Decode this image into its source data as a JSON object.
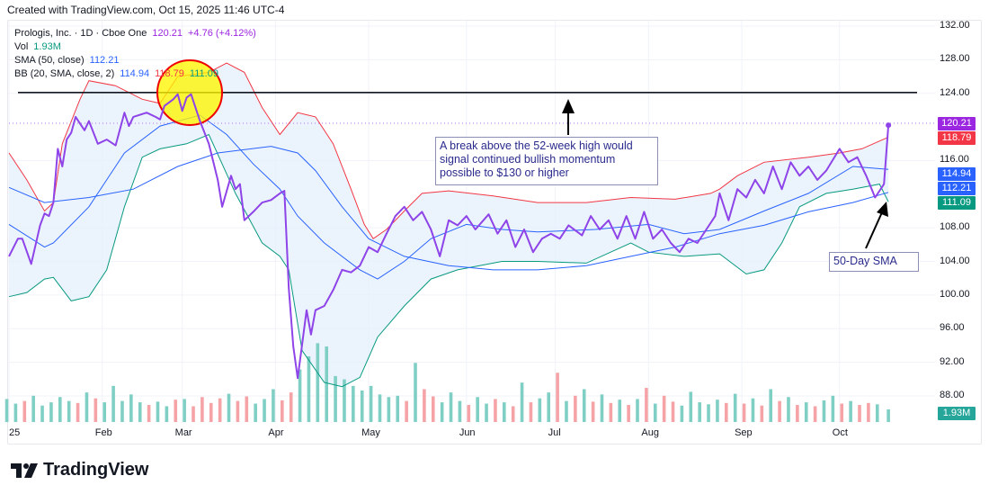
{
  "header": {
    "created": "Created with TradingView.com, Oct 15, 2025 11:46 UTC-4"
  },
  "legend": {
    "symbol": "Prologis, Inc. · 1D · Cboe One",
    "price": "120.21",
    "change": "+4.76 (+4.12%)",
    "vol_label": "Vol",
    "vol_value": "1.93M",
    "sma_label": "SMA (50, close)",
    "sma_value": "112.21",
    "bb_label": "BB (20, SMA, close, 2)",
    "bb_basis": "114.94",
    "bb_upper": "118.79",
    "bb_lower": "111.09"
  },
  "price_tags": {
    "last": "120.21",
    "bb_upper": "118.79",
    "bb_basis": "114.94",
    "sma": "112.21",
    "bb_lower": "111.09",
    "volume": "1.93M"
  },
  "annotations": {
    "breakout_note": "A break above the 52-week high would signal continued bullish momentum possible to $130 or higher",
    "sma_note": "50-Day SMA",
    "resistance_level": 124.1
  },
  "colors": {
    "price": "#8e44e8",
    "bb_upper": "#f23645",
    "bb_lower": "#089981",
    "bb_basis": "#2962ff",
    "sma": "#2962ff",
    "bb_fill": "#e3f0fb",
    "vol_up": "#7fcfc5",
    "vol_down": "#f5a3a6",
    "tag_last": "#9c27e0"
  },
  "brand": {
    "name": "TradingView"
  },
  "chart_data": {
    "type": "line",
    "title": "Prologis, Inc. · 1D",
    "xlabel": "",
    "ylabel": "",
    "ylim": [
      84,
      132
    ],
    "xlim": [
      0,
      198
    ],
    "x_unit": "trading day index (2025)",
    "y_ticks": [
      "132.00",
      "128.00",
      "124.00",
      "116.00",
      "108.00",
      "104.00",
      "100.00",
      "96.00",
      "92.00",
      "88.00"
    ],
    "y_tick_values": [
      132,
      128,
      124,
      116,
      108,
      104,
      100,
      96,
      92,
      88
    ],
    "x_ticks": [
      {
        "label": "25",
        "day": 0
      },
      {
        "label": "Feb",
        "day": 21
      },
      {
        "label": "Mar",
        "day": 39
      },
      {
        "label": "Apr",
        "day": 60
      },
      {
        "label": "May",
        "day": 81
      },
      {
        "label": "Jun",
        "day": 103
      },
      {
        "label": "Jul",
        "day": 123
      },
      {
        "label": "Aug",
        "day": 144
      },
      {
        "label": "Sep",
        "day": 165
      },
      {
        "label": "Oct",
        "day": 187
      }
    ],
    "grid": true,
    "series": [
      {
        "name": "Close",
        "key": "close",
        "points": [
          [
            0,
            104.6
          ],
          [
            2,
            106.7
          ],
          [
            3,
            106.7
          ],
          [
            5,
            103.7
          ],
          [
            7,
            108.3
          ],
          [
            8,
            109.7
          ],
          [
            9,
            109.4
          ],
          [
            10,
            111.0
          ],
          [
            11,
            117.4
          ],
          [
            12,
            115.3
          ],
          [
            13,
            118.5
          ],
          [
            14,
            119.3
          ],
          [
            15,
            121.2
          ],
          [
            17,
            119.6
          ],
          [
            18,
            120.7
          ],
          [
            20,
            118.0
          ],
          [
            22,
            118.5
          ],
          [
            24,
            117.8
          ],
          [
            26,
            121.7
          ],
          [
            27,
            120.1
          ],
          [
            28,
            121.2
          ],
          [
            31,
            121.7
          ],
          [
            33,
            121.2
          ],
          [
            34,
            120.9
          ],
          [
            35,
            122.5
          ],
          [
            37,
            123.3
          ],
          [
            38,
            123.9
          ],
          [
            39,
            121.9
          ],
          [
            40,
            123.5
          ],
          [
            41,
            123.9
          ],
          [
            43,
            120.7
          ],
          [
            45,
            118.0
          ],
          [
            47,
            113.7
          ],
          [
            48,
            110.5
          ],
          [
            50,
            114.2
          ],
          [
            51,
            112.6
          ],
          [
            52,
            113.2
          ],
          [
            53,
            108.9
          ],
          [
            55,
            109.9
          ],
          [
            57,
            111.0
          ],
          [
            59,
            111.3
          ],
          [
            61,
            112.1
          ],
          [
            62,
            112.4
          ],
          [
            63,
            100.8
          ],
          [
            64,
            93.9
          ],
          [
            65,
            90.1
          ],
          [
            67,
            98.2
          ],
          [
            68,
            95.3
          ],
          [
            69,
            98.2
          ],
          [
            71,
            98.7
          ],
          [
            73,
            100.6
          ],
          [
            75,
            103.0
          ],
          [
            77,
            102.7
          ],
          [
            79,
            103.5
          ],
          [
            81,
            105.7
          ],
          [
            83,
            105.1
          ],
          [
            85,
            107.3
          ],
          [
            87,
            109.4
          ],
          [
            89,
            110.5
          ],
          [
            91,
            108.9
          ],
          [
            93,
            109.9
          ],
          [
            95,
            107.8
          ],
          [
            97,
            104.6
          ],
          [
            99,
            108.9
          ],
          [
            101,
            108.3
          ],
          [
            103,
            109.4
          ],
          [
            105,
            107.8
          ],
          [
            108,
            109.6
          ],
          [
            110,
            107.3
          ],
          [
            112,
            108.9
          ],
          [
            114,
            105.7
          ],
          [
            116,
            107.8
          ],
          [
            118,
            105.1
          ],
          [
            120,
            106.7
          ],
          [
            122,
            107.3
          ],
          [
            124,
            106.7
          ],
          [
            126,
            108.3
          ],
          [
            129,
            107.1
          ],
          [
            131,
            109.4
          ],
          [
            133,
            107.8
          ],
          [
            135,
            108.9
          ],
          [
            137,
            106.7
          ],
          [
            139,
            109.4
          ],
          [
            141,
            106.7
          ],
          [
            143,
            109.9
          ],
          [
            145,
            106.7
          ],
          [
            147,
            107.8
          ],
          [
            149,
            106.2
          ],
          [
            151,
            105.1
          ],
          [
            153,
            106.7
          ],
          [
            155,
            106.2
          ],
          [
            157,
            107.8
          ],
          [
            159,
            109.4
          ],
          [
            160,
            112.1
          ],
          [
            162,
            108.9
          ],
          [
            164,
            112.6
          ],
          [
            166,
            111.6
          ],
          [
            168,
            113.7
          ],
          [
            170,
            112.1
          ],
          [
            172,
            115.3
          ],
          [
            174,
            112.6
          ],
          [
            176,
            115.8
          ],
          [
            178,
            114.2
          ],
          [
            180,
            115.3
          ],
          [
            182,
            113.7
          ],
          [
            184,
            114.8
          ],
          [
            187,
            117.4
          ],
          [
            189,
            115.8
          ],
          [
            191,
            116.4
          ],
          [
            193,
            114.2
          ],
          [
            195,
            111.6
          ],
          [
            197,
            113.2
          ],
          [
            198,
            120.21
          ]
        ]
      },
      {
        "name": "BB Upper",
        "key": "bb_upper",
        "points": [
          [
            0,
            116.9
          ],
          [
            4,
            113.7
          ],
          [
            8,
            110.0
          ],
          [
            10,
            111.0
          ],
          [
            12,
            118.0
          ],
          [
            16,
            123.3
          ],
          [
            18,
            125.5
          ],
          [
            24,
            124.9
          ],
          [
            30,
            123.3
          ],
          [
            34,
            122.8
          ],
          [
            38,
            126.0
          ],
          [
            45,
            126.5
          ],
          [
            49,
            127.6
          ],
          [
            53,
            126.5
          ],
          [
            57,
            122.3
          ],
          [
            61,
            119.1
          ],
          [
            65,
            121.7
          ],
          [
            69,
            121.2
          ],
          [
            73,
            118.0
          ],
          [
            77,
            112.6
          ],
          [
            80,
            108.4
          ],
          [
            82,
            106.7
          ],
          [
            85,
            107.8
          ],
          [
            89,
            110.0
          ],
          [
            93,
            112.1
          ],
          [
            99,
            112.4
          ],
          [
            109,
            111.8
          ],
          [
            119,
            111.0
          ],
          [
            130,
            111.0
          ],
          [
            140,
            111.6
          ],
          [
            150,
            111.4
          ],
          [
            158,
            112.1
          ],
          [
            160,
            112.6
          ],
          [
            164,
            114.2
          ],
          [
            170,
            115.8
          ],
          [
            180,
            116.4
          ],
          [
            187,
            116.9
          ],
          [
            192,
            117.4
          ],
          [
            198,
            118.79
          ]
        ]
      },
      {
        "name": "BB Basis",
        "key": "bb_basis",
        "points": [
          [
            0,
            108.4
          ],
          [
            8,
            105.7
          ],
          [
            10,
            106.2
          ],
          [
            18,
            110.5
          ],
          [
            26,
            116.9
          ],
          [
            34,
            120.1
          ],
          [
            43,
            121.4
          ],
          [
            49,
            119.1
          ],
          [
            55,
            115.6
          ],
          [
            61,
            112.6
          ],
          [
            65,
            109.4
          ],
          [
            71,
            106.2
          ],
          [
            79,
            103.0
          ],
          [
            83,
            101.9
          ],
          [
            89,
            104.0
          ],
          [
            95,
            106.7
          ],
          [
            103,
            108.4
          ],
          [
            111,
            107.8
          ],
          [
            119,
            107.5
          ],
          [
            132,
            107.8
          ],
          [
            144,
            108.4
          ],
          [
            152,
            107.3
          ],
          [
            160,
            107.8
          ],
          [
            170,
            110.0
          ],
          [
            180,
            112.1
          ],
          [
            190,
            115.3
          ],
          [
            198,
            114.94
          ]
        ]
      },
      {
        "name": "BB Lower",
        "key": "bb_lower",
        "points": [
          [
            0,
            99.8
          ],
          [
            4,
            100.3
          ],
          [
            8,
            101.9
          ],
          [
            10,
            102.1
          ],
          [
            14,
            99.3
          ],
          [
            18,
            99.8
          ],
          [
            22,
            103.0
          ],
          [
            26,
            110.5
          ],
          [
            30,
            116.4
          ],
          [
            34,
            117.4
          ],
          [
            40,
            118.0
          ],
          [
            45,
            119.1
          ],
          [
            51,
            112.1
          ],
          [
            57,
            106.2
          ],
          [
            61,
            104.6
          ],
          [
            63,
            103.0
          ],
          [
            66,
            93.4
          ],
          [
            71,
            89.6
          ],
          [
            75,
            89.1
          ],
          [
            79,
            90.2
          ],
          [
            83,
            95.0
          ],
          [
            89,
            98.7
          ],
          [
            95,
            101.9
          ],
          [
            101,
            103.0
          ],
          [
            111,
            104.0
          ],
          [
            119,
            104.0
          ],
          [
            130,
            103.8
          ],
          [
            140,
            106.2
          ],
          [
            144,
            105.1
          ],
          [
            152,
            104.6
          ],
          [
            160,
            104.9
          ],
          [
            166,
            102.5
          ],
          [
            170,
            103.0
          ],
          [
            174,
            106.2
          ],
          [
            178,
            110.5
          ],
          [
            184,
            112.1
          ],
          [
            190,
            112.6
          ],
          [
            196,
            113.2
          ],
          [
            198,
            111.09
          ]
        ]
      },
      {
        "name": "SMA 50",
        "key": "sma",
        "points": [
          [
            0,
            112.8
          ],
          [
            8,
            111.0
          ],
          [
            18,
            111.6
          ],
          [
            28,
            112.6
          ],
          [
            38,
            115.3
          ],
          [
            47,
            116.9
          ],
          [
            59,
            117.7
          ],
          [
            65,
            116.9
          ],
          [
            69,
            114.8
          ],
          [
            75,
            110.5
          ],
          [
            81,
            106.7
          ],
          [
            89,
            104.6
          ],
          [
            99,
            103.5
          ],
          [
            109,
            103.0
          ],
          [
            119,
            103.0
          ],
          [
            130,
            103.5
          ],
          [
            140,
            104.6
          ],
          [
            150,
            105.7
          ],
          [
            160,
            107.3
          ],
          [
            170,
            108.3
          ],
          [
            180,
            109.9
          ],
          [
            190,
            111.0
          ],
          [
            198,
            112.21
          ]
        ]
      }
    ],
    "volume_millions_per_2days": [
      3.5,
      2.8,
      3.2,
      4.0,
      2.5,
      3.0,
      3.8,
      3.2,
      2.9,
      4.5,
      3.6,
      3.0,
      5.5,
      3.2,
      4.2,
      3.0,
      2.6,
      3.1,
      2.4,
      3.4,
      3.5,
      2.4,
      3.8,
      2.9,
      3.6,
      4.3,
      3.2,
      3.9,
      2.8,
      3.5,
      5.0,
      3.3,
      4.5,
      8.0,
      10.0,
      12.0,
      11.5,
      7.0,
      6.5,
      5.5,
      4.8,
      5.5,
      4.2,
      3.8,
      4.0,
      3.2,
      9.0,
      5.0,
      3.9,
      3.0,
      4.5,
      3.2,
      2.6,
      3.8,
      2.8,
      3.5,
      3.0,
      2.4,
      6.0,
      3.0,
      3.6,
      4.5,
      7.5,
      3.2,
      4.0,
      5.0,
      3.1,
      4.2,
      2.9,
      3.4,
      2.6,
      3.5,
      5.2,
      2.8,
      4.0,
      3.1,
      2.5,
      4.6,
      3.0,
      2.7,
      3.4,
      2.9,
      4.3,
      2.8,
      3.6,
      2.5,
      5.0,
      3.2,
      3.8,
      2.6,
      3.0,
      2.4,
      3.3,
      4.0,
      2.8,
      3.2,
      2.6,
      2.9,
      2.7,
      1.93
    ]
  }
}
